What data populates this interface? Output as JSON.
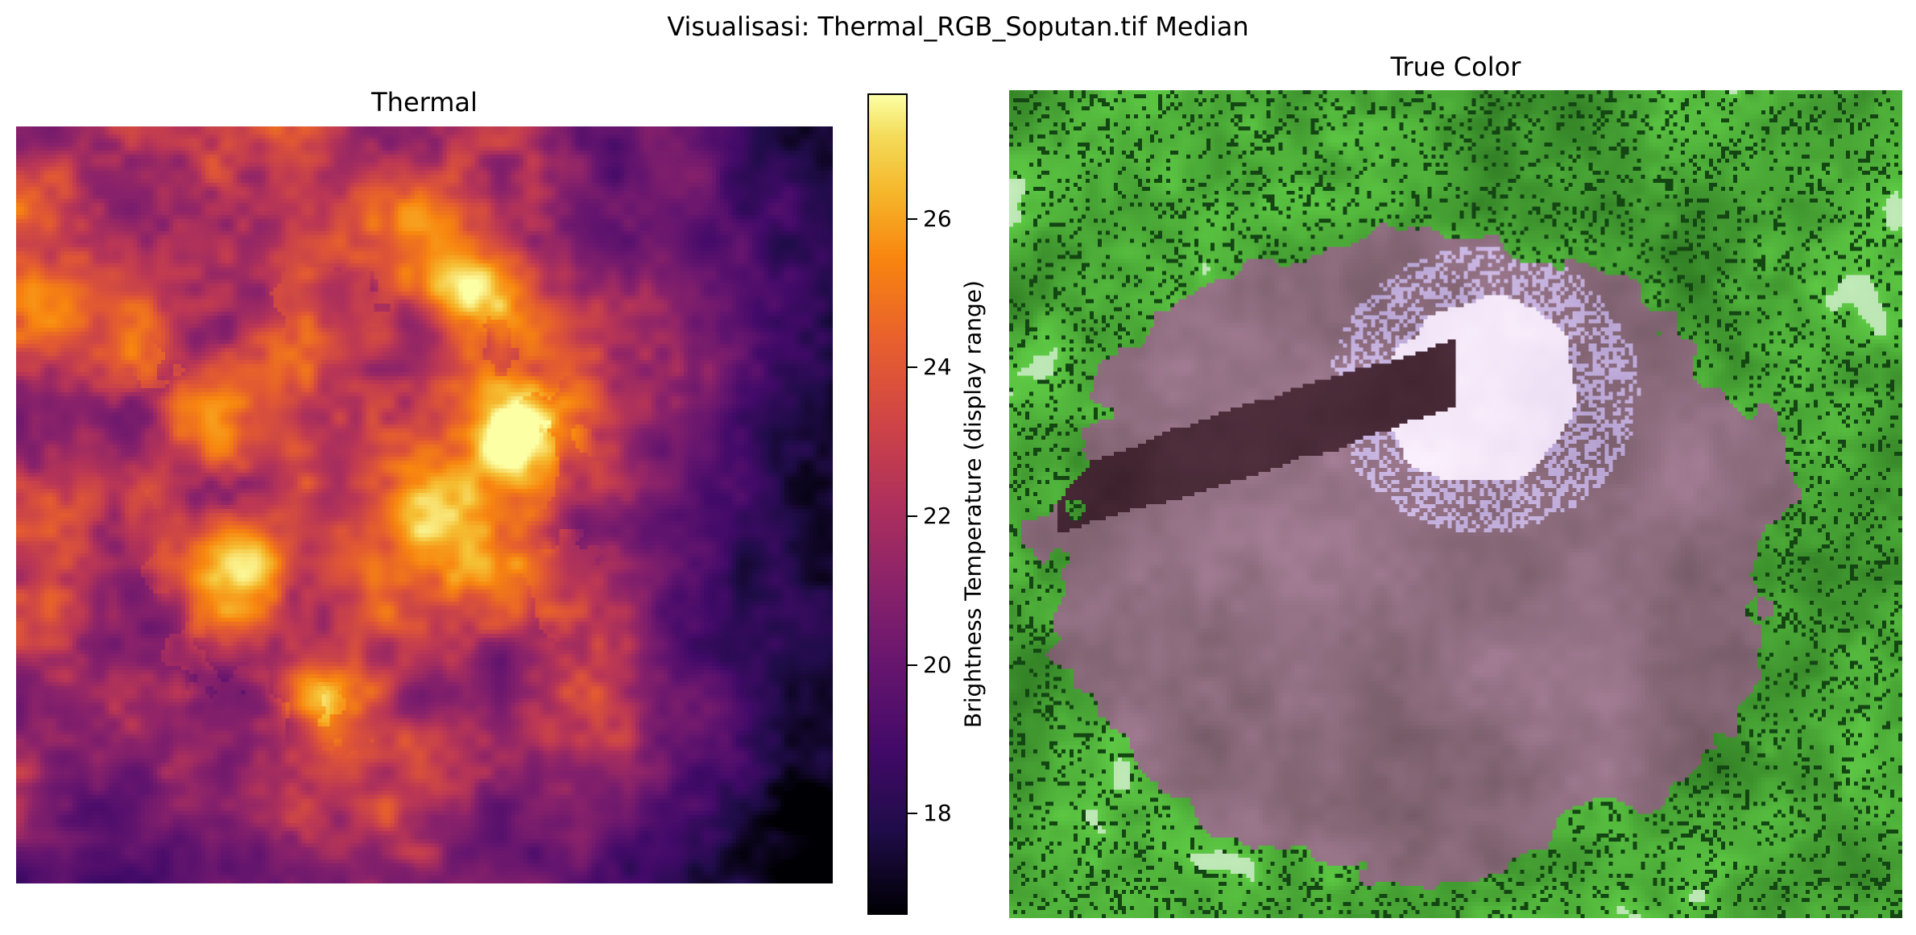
{
  "figure": {
    "suptitle": "Visualisasi: Thermal_RGB_Soputan.tif Median"
  },
  "panels": {
    "thermal": {
      "title": "Thermal",
      "colormap": "inferno"
    },
    "true_color": {
      "title": "True Color"
    }
  },
  "colorbar": {
    "label": "Brightness Temperature (display range)",
    "range": [
      16.6,
      27.6
    ],
    "ticks": [
      "26",
      "24",
      "22",
      "20",
      "18"
    ]
  }
}
